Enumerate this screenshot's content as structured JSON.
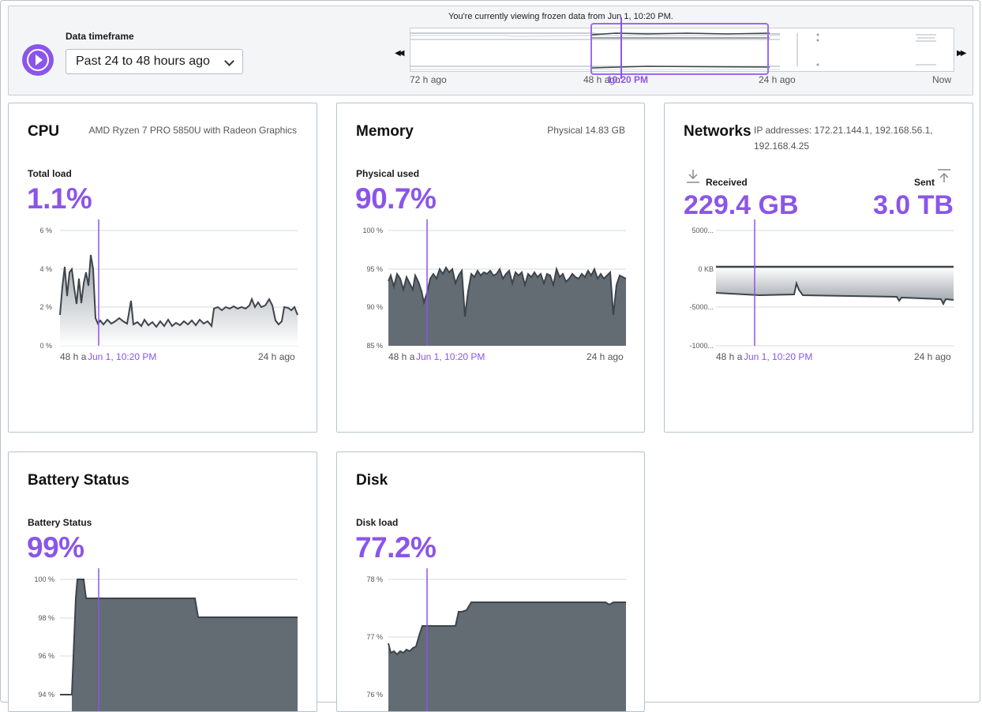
{
  "timeframe": {
    "label": "Data timeframe",
    "selected": "Past 24 to 48 hours ago",
    "frozen_note": "You're currently viewing frozen data from Jun 1, 10:20 PM.",
    "ticks": [
      "72 h ago",
      "48 h ago",
      "24 h ago",
      "Now"
    ],
    "cursor_time": "10:20 PM",
    "play_icon": "play-circle-icon",
    "prev_icon": "rewind-icon",
    "next_icon": "fast-forward-icon"
  },
  "cpu": {
    "title": "CPU",
    "subtitle": "AMD Ryzen 7 PRO 5850U with Radeon Graphics",
    "metric_label": "Total load",
    "value": "1.1%",
    "y_ticks": [
      "6 %",
      "4 %",
      "2 %",
      "0 %"
    ],
    "x_start": "48 h a",
    "x_cursor": "Jun 1, 10:20 PM",
    "x_end": "24 h ago"
  },
  "memory": {
    "title": "Memory",
    "subtitle": "Physical 14.83 GB",
    "metric_label": "Physical used",
    "value": "90.7%",
    "y_ticks": [
      "100 %",
      "95 %",
      "90 %",
      "85 %"
    ],
    "x_start": "48 h a",
    "x_cursor": "Jun 1, 10:20 PM",
    "x_end": "24 h ago"
  },
  "networks": {
    "title": "Networks",
    "subtitle": "IP addresses: 172.21.144.1, 192.168.56.1, 192.168.4.25",
    "received_label": "Received",
    "received_value": "229.4 GB",
    "sent_label": "Sent",
    "sent_value": "3.0 TB",
    "y_ticks": [
      "5000...",
      "0 KB",
      "-5000...",
      "-1000..."
    ],
    "x_start": "48 h a",
    "x_cursor": "Jun 1, 10:20 PM",
    "x_end": "24 h ago",
    "received_icon": "download-icon",
    "sent_icon": "upload-icon"
  },
  "battery": {
    "title": "Battery Status",
    "metric_label": "Battery Status",
    "value": "99%",
    "y_ticks": [
      "100 %",
      "98 %",
      "96 %",
      "94 %"
    ]
  },
  "disk": {
    "title": "Disk",
    "metric_label": "Disk load",
    "value": "77.2%",
    "y_ticks": [
      "78 %",
      "77 %",
      "76 %"
    ]
  },
  "colors": {
    "accent": "#8b55ea",
    "series_line": "#3d444c",
    "series_fill": "#636b73",
    "grid": "#d6dadf",
    "border": "#b7c3cd"
  }
}
